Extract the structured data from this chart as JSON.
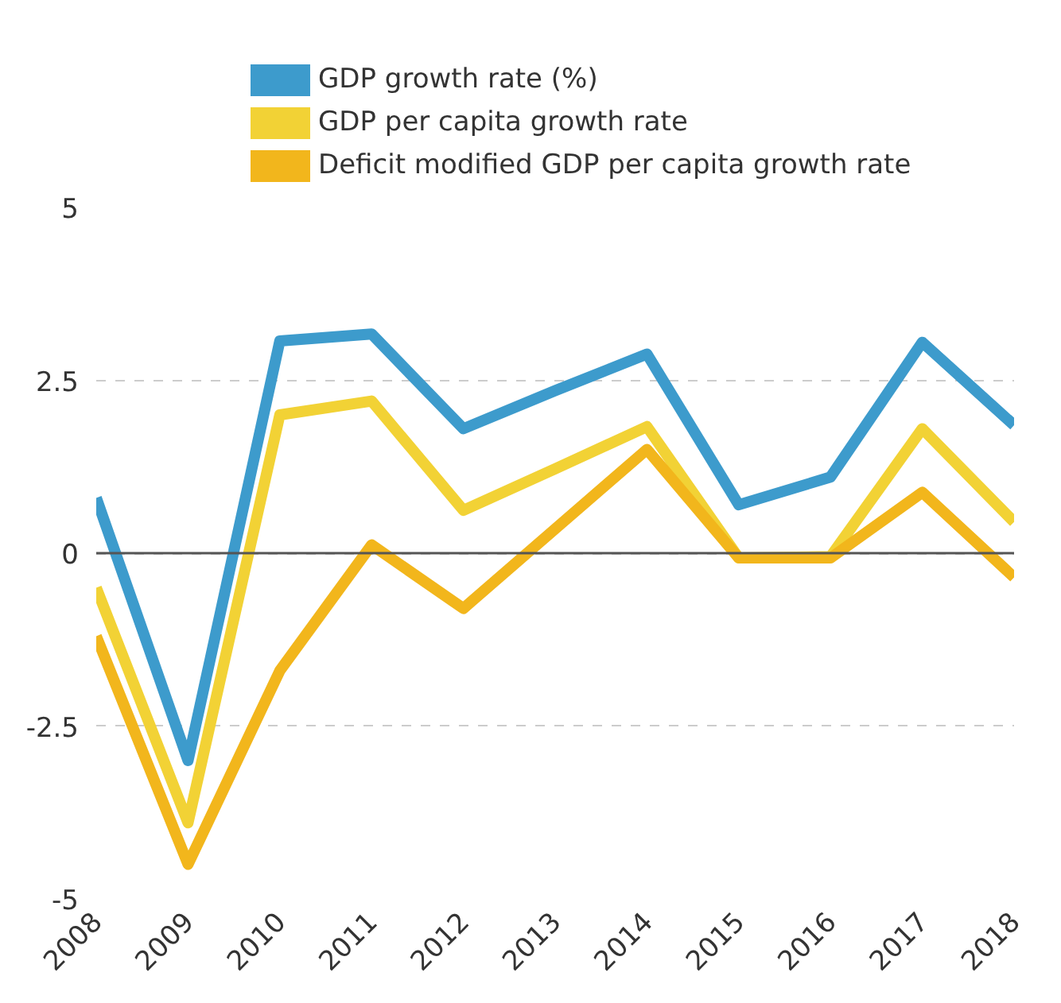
{
  "chart_data": {
    "type": "line",
    "x": [
      2008,
      2009,
      2010,
      2011,
      2012,
      2013,
      2014,
      2015,
      2016,
      2017,
      2018
    ],
    "series": [
      {
        "name": "GDP growth rate (%)",
        "color": "#3d9bcc",
        "values": [
          0.8,
          -3.0,
          3.07,
          3.17,
          1.8,
          2.35,
          2.88,
          0.7,
          1.1,
          3.05,
          1.85
        ]
      },
      {
        "name": "GDP per capita growth rate",
        "color": "#f2d235",
        "values": [
          -0.5,
          -3.9,
          2.0,
          2.2,
          0.62,
          1.22,
          1.83,
          -0.07,
          -0.05,
          1.8,
          0.45
        ]
      },
      {
        "name": "Deficit modified GDP per capita growth rate",
        "color": "#f2b61c",
        "values": [
          -1.2,
          -4.5,
          -1.7,
          0.12,
          -0.8,
          0.35,
          1.5,
          -0.07,
          -0.07,
          0.88,
          -0.35
        ]
      }
    ],
    "xlim": [
      2008,
      2018
    ],
    "xticks": [
      2008,
      2009,
      2010,
      2011,
      2012,
      2013,
      2014,
      2015,
      2016,
      2017,
      2018
    ],
    "ylim": [
      -5,
      5
    ],
    "yticks": [
      5,
      2.5,
      0,
      -2.5,
      -5
    ],
    "ref_lines": [
      {
        "axis": "y",
        "value": 0,
        "color": "#555555"
      }
    ],
    "grid": "y",
    "legend": "top",
    "marker": "none",
    "line_style": "solid"
  }
}
